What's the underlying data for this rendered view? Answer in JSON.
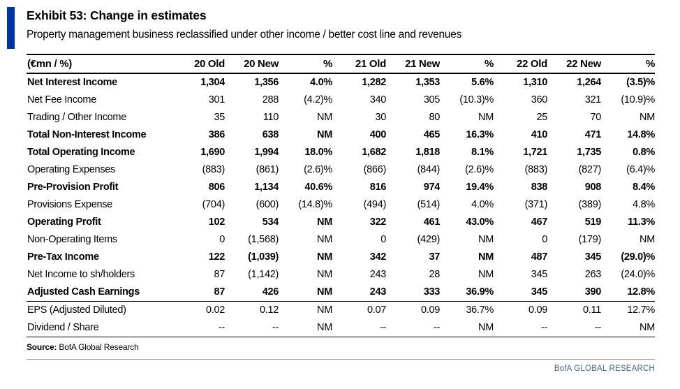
{
  "exhibit": {
    "label": "Exhibit 53:",
    "title": "Change in estimates",
    "subtitle": "Property management business reclassified under other income / better cost line and revenues"
  },
  "table": {
    "columns": [
      "(€mn / %)",
      "20 Old",
      "20 New",
      "%",
      "21 Old",
      "21 New",
      "%",
      "22 Old",
      "22 New",
      "%"
    ],
    "rows": [
      {
        "label": "Net Interest Income",
        "bold": true,
        "rule_below": false,
        "values": [
          "1,304",
          "1,356",
          "4.0%",
          "1,282",
          "1,353",
          "5.6%",
          "1,310",
          "1,264",
          "(3.5)%"
        ]
      },
      {
        "label": "Net Fee Income",
        "bold": false,
        "rule_below": false,
        "values": [
          "301",
          "288",
          "(4.2)%",
          "340",
          "305",
          "(10.3)%",
          "360",
          "321",
          "(10.9)%"
        ]
      },
      {
        "label": "Trading / Other Income",
        "bold": false,
        "rule_below": false,
        "values": [
          "35",
          "110",
          "NM",
          "30",
          "80",
          "NM",
          "25",
          "70",
          "NM"
        ]
      },
      {
        "label": "Total Non-Interest Income",
        "bold": true,
        "rule_below": false,
        "values": [
          "386",
          "638",
          "NM",
          "400",
          "465",
          "16.3%",
          "410",
          "471",
          "14.8%"
        ]
      },
      {
        "label": "Total Operating Income",
        "bold": true,
        "rule_below": false,
        "values": [
          "1,690",
          "1,994",
          "18.0%",
          "1,682",
          "1,818",
          "8.1%",
          "1,721",
          "1,735",
          "0.8%"
        ]
      },
      {
        "label": "Operating Expenses",
        "bold": false,
        "rule_below": false,
        "values": [
          "(883)",
          "(861)",
          "(2.6)%",
          "(866)",
          "(844)",
          "(2.6)%",
          "(883)",
          "(827)",
          "(6.4)%"
        ]
      },
      {
        "label": "Pre-Provision Profit",
        "bold": true,
        "rule_below": false,
        "values": [
          "806",
          "1,134",
          "40.6%",
          "816",
          "974",
          "19.4%",
          "838",
          "908",
          "8.4%"
        ]
      },
      {
        "label": "Provisions Expense",
        "bold": false,
        "rule_below": false,
        "values": [
          "(704)",
          "(600)",
          "(14.8)%",
          "(494)",
          "(514)",
          "4.0%",
          "(371)",
          "(389)",
          "4.8%"
        ]
      },
      {
        "label": "Operating Profit",
        "bold": true,
        "rule_below": false,
        "values": [
          "102",
          "534",
          "NM",
          "322",
          "461",
          "43.0%",
          "467",
          "519",
          "11.3%"
        ]
      },
      {
        "label": "Non-Operating Items",
        "bold": false,
        "rule_below": false,
        "values": [
          "0",
          "(1,568)",
          "NM",
          "0",
          "(429)",
          "NM",
          "0",
          "(179)",
          "NM"
        ]
      },
      {
        "label": "Pre-Tax Income",
        "bold": true,
        "rule_below": false,
        "values": [
          "122",
          "(1,039)",
          "NM",
          "342",
          "37",
          "NM",
          "487",
          "345",
          "(29.0)%"
        ]
      },
      {
        "label": "Net Income to sh/holders",
        "bold": false,
        "rule_below": false,
        "values": [
          "87",
          "(1,142)",
          "NM",
          "243",
          "28",
          "NM",
          "345",
          "263",
          "(24.0)%"
        ]
      },
      {
        "label": "Adjusted Cash Earnings",
        "bold": true,
        "rule_below": true,
        "values": [
          "87",
          "426",
          "NM",
          "243",
          "333",
          "36.9%",
          "345",
          "390",
          "12.8%"
        ]
      },
      {
        "label": "EPS (Adjusted Diluted)",
        "bold": false,
        "rule_below": false,
        "values": [
          "0.02",
          "0.12",
          "NM",
          "0.07",
          "0.09",
          "36.7%",
          "0.09",
          "0.11",
          "12.7%"
        ]
      },
      {
        "label": "Dividend / Share",
        "bold": false,
        "rule_below": true,
        "values": [
          "--",
          "--",
          "NM",
          "--",
          "--",
          "NM",
          "--",
          "--",
          "NM"
        ]
      }
    ]
  },
  "footer": {
    "source_label": "Source:",
    "source_text": "BofA Global Research",
    "brand": "BofA GLOBAL RESEARCH"
  },
  "colors": {
    "accent_blue": "#0032a0",
    "brand_text": "#4d608c",
    "table_rule": "#000000",
    "footer_rule": "#9aa0a6"
  }
}
